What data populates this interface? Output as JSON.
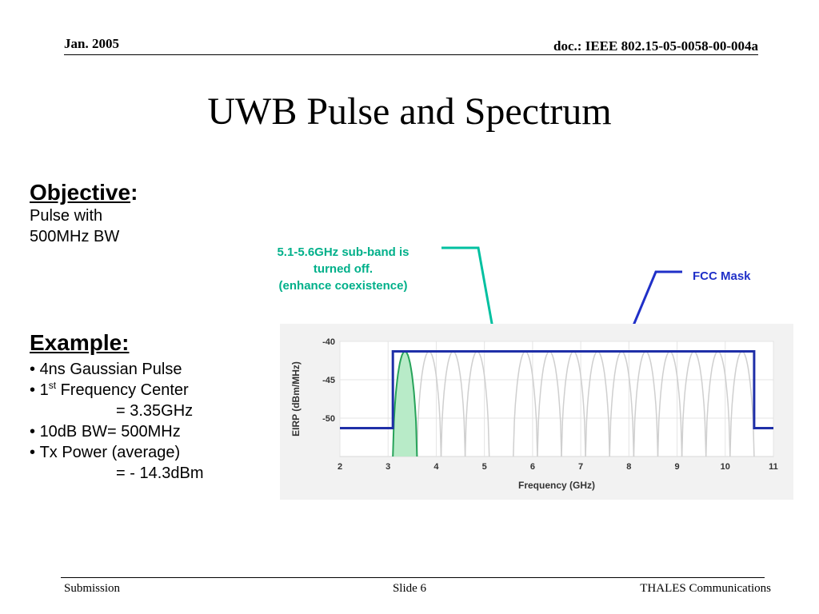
{
  "header": {
    "date": "Jan. 2005",
    "doc": "doc.: IEEE 802.15-05-0058-00-004a"
  },
  "title": "UWB Pulse and Spectrum",
  "objective": {
    "heading": "Objective",
    "colon": ":",
    "lines": [
      "Pulse with",
      "500MHz BW"
    ]
  },
  "example": {
    "heading": "Example:",
    "b1": "4ns Gaussian Pulse",
    "b2_pre": "1",
    "b2_sup": "st",
    "b2_post": " Frequency Center",
    "b2_cont": "= 3.35GHz",
    "b3": "10dB BW= 500MHz",
    "b4": "Tx Power (average)",
    "b4_cont": "= - 14.3dBm"
  },
  "callouts": {
    "subband": [
      "5.1-5.6GHz sub-band is",
      "turned off.",
      "(enhance coexistence)"
    ],
    "fcc": "FCC Mask"
  },
  "colors": {
    "mask": "#1f2fa8",
    "pulse_fill": "#b8ebc8",
    "pulse_line": "#27a35a",
    "ghost": "#cfcfcf",
    "callout_green": "#00b08a",
    "callout_blue": "#2030c8"
  },
  "chart_data": {
    "type": "line",
    "title": "",
    "xlabel": "Frequency (GHz)",
    "ylabel": "EIRP (dBm/MHz)",
    "xlim": [
      2,
      11
    ],
    "ylim": [
      -55,
      -40
    ],
    "xticks": [
      2,
      3,
      4,
      5,
      6,
      7,
      8,
      9,
      10,
      11
    ],
    "yticks": [
      -40,
      -45,
      -50
    ],
    "grid": true,
    "series": [
      {
        "x": [
          2,
          3.1,
          3.1,
          10.6,
          10.6,
          11
        ],
        "y": [
          -51.3,
          -51.3,
          -41.3,
          -41.3,
          -51.3,
          -51.3
        ]
      }
    ],
    "active_pulse": {
      "center": 3.35,
      "low": 3.1,
      "high": 3.6,
      "peak": -41.3
    },
    "ghost_pulse_centers": [
      3.85,
      4.35,
      4.85,
      5.85,
      6.35,
      6.85,
      7.35,
      7.85,
      8.35,
      8.85,
      9.35,
      9.85,
      10.35
    ],
    "ghost_pulse_width": 0.5
  },
  "footer": {
    "left": "Submission",
    "center": "Slide 6",
    "right": "THALES Communications"
  }
}
